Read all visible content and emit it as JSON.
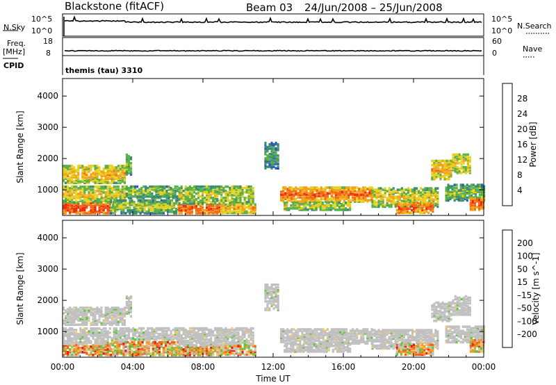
{
  "header": {
    "station": "Blackstone (fitACF)",
    "beam": "Beam 03",
    "date_range": "24/Jun/2008 – 25/Jun/2008"
  },
  "status_panels": {
    "left_label_nsky": "N.Sky",
    "left_tick_top": "10^5",
    "left_tick_bottom": "10^0",
    "right_tick_top": "10^5",
    "right_tick_bottom": "10^0",
    "right_label_nsearch": "N.Search",
    "freq_label_line1": "Freq.",
    "freq_label_line2": "[MHz]",
    "freq_tick_top": "18",
    "freq_tick_bottom": "8",
    "nave_tick_top": "60",
    "nave_tick_bottom": "0",
    "nave_label": "Nave",
    "cpid_label": "CPID",
    "cpid_value": "themis (tau) 3310"
  },
  "colors": {
    "power": [
      "#0022ee",
      "#2a5cb8",
      "#3c8d6e",
      "#5bb04a",
      "#e8d11c",
      "#f0a21a",
      "#f26a12",
      "#ee2a10"
    ],
    "velocity": [
      "#e81e10",
      "#f0641a",
      "#f29a2a",
      "#f2c873",
      "#c0c0c0",
      "#68c23a",
      "#3c9c5a",
      "#2f6aa8",
      "#2a3fc8"
    ]
  },
  "chart_data": [
    {
      "type": "heatmap",
      "title": "",
      "xlabel": "Time UT",
      "ylabel": "Slant Range [km]",
      "x_ticks": [
        "00:00",
        "04:00",
        "08:00",
        "12:00",
        "16:00",
        "20:00",
        "00:00"
      ],
      "y_ticks": [
        "1000",
        "2000",
        "3000",
        "4000"
      ],
      "xlim_hours": [
        0,
        24
      ],
      "ylim_km": [
        180,
        4560
      ],
      "colorbar_label": "Power [dB]",
      "colorbar_ticks": [
        "4",
        "8",
        "12",
        "16",
        "20",
        "24",
        "28"
      ],
      "colorbar_range": [
        0,
        32
      ]
    },
    {
      "type": "heatmap",
      "title": "",
      "xlabel": "Time UT",
      "ylabel": "Slant Range [km]",
      "x_ticks": [
        "00:00",
        "04:00",
        "08:00",
        "12:00",
        "16:00",
        "20:00",
        "00:00"
      ],
      "y_ticks": [
        "1000",
        "2000",
        "3000",
        "4000"
      ],
      "xlim_hours": [
        0,
        24
      ],
      "ylim_km": [
        180,
        4560
      ],
      "colorbar_label": "Velocity [m s^-1]",
      "colorbar_ticks": [
        "200",
        "100",
        "50",
        "15",
        "–15",
        "–50",
        "–100",
        "–200"
      ]
    }
  ]
}
